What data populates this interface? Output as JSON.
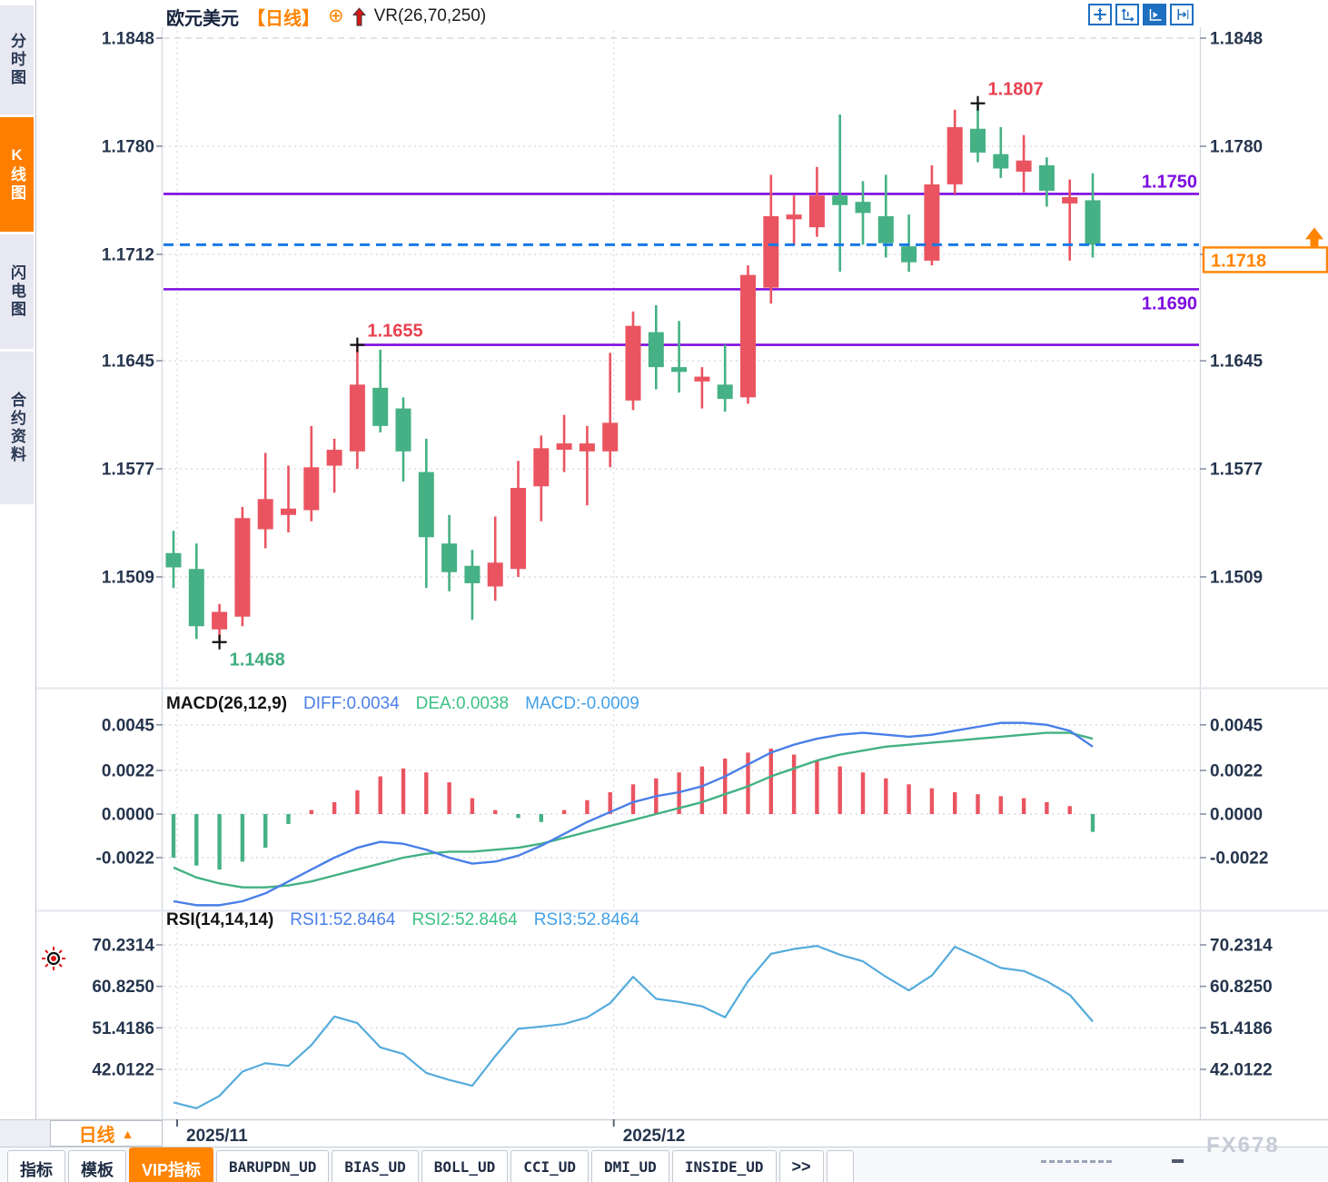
{
  "header": {
    "symbol": "欧元美元",
    "period_tag": "【日线】",
    "plus_icon": "⊕",
    "arrow_icon_name": "red-up-arrow-icon",
    "indicator_label": "VR(26,70,250)"
  },
  "window_buttons": [
    "crosshair-icon",
    "axis-zoom-icon",
    "axis-play-icon",
    "shift-right-icon"
  ],
  "sidebar": {
    "tabs": [
      {
        "label": "分时图",
        "active": false
      },
      {
        "label": "K线图",
        "active": true
      },
      {
        "label": "闪电图",
        "active": false
      },
      {
        "label": "合约资料",
        "active": false
      }
    ]
  },
  "macd_header": {
    "title": "MACD(26,12,9)",
    "diff": "DIFF:0.0034",
    "dea": "DEA:0.0038",
    "macd": "MACD:-0.0009"
  },
  "rsi_header": {
    "title": "RSI(14,14,14)",
    "rsi1": "RSI1:52.8464",
    "rsi2": "RSI2:52.8464",
    "rsi3": "RSI3:52.8464"
  },
  "bottom": {
    "period_label": "日线",
    "period_arrow": "▲",
    "watermark": "FX678"
  },
  "tabs_bottom": [
    "指标",
    "模板",
    "VIP指标",
    "BARUPDN_UD",
    "BIAS_UD",
    "BOLL_UD",
    "CCI_UD",
    "DMI_UD",
    "INSIDE_UD",
    ">>"
  ],
  "colors": {
    "up": "#ea5460",
    "down": "#45b184",
    "accent_orange": "#ff8400",
    "purple": "#7d0ce0",
    "current_blue": "#1778e8",
    "axis_text": "#25354d",
    "diff_blue": "#4a7fe8",
    "dea_green": "#43b184",
    "rsi_line": "#55abdc",
    "grid": "#d9d9e0",
    "marker_green": "#3fae7f",
    "marker_red": "#e84150",
    "watermark_gray": "#c6ccd6"
  },
  "chart_data": [
    {
      "type": "candlestick",
      "title": "欧元美元 日线 (EUR/USD daily)",
      "tick_decimals": 4,
      "yticks": [
        1.1848,
        1.178,
        1.1712,
        1.1645,
        1.1577,
        1.1509
      ],
      "ylim": [
        1.1468,
        1.1848
      ],
      "x_labels": [
        "2025/11",
        "2025/12"
      ],
      "month_start_indices": [
        0,
        19
      ],
      "current_price": 1.1718,
      "current_price_label": "1.1718",
      "hlines": [
        {
          "price": 1.175,
          "label": "1.1750",
          "label_side": "above",
          "start_index": null
        },
        {
          "price": 1.169,
          "label": "1.1690",
          "label_side": "below",
          "start_index": null
        },
        {
          "price": 1.1655,
          "label": null,
          "label_side": null,
          "start_index": 8
        }
      ],
      "markers": [
        {
          "index": 2,
          "price": 1.1468,
          "label": "1.1468",
          "position": "below",
          "color": "#3fae7f"
        },
        {
          "index": 8,
          "price": 1.1655,
          "label": "1.1655",
          "position": "above",
          "color": "#e84150"
        },
        {
          "index": 35,
          "price": 1.1807,
          "label": "1.1807",
          "position": "above",
          "color": "#e84150"
        }
      ],
      "candles_ohlc": [
        [
          1.1524,
          1.1538,
          1.1502,
          1.1515
        ],
        [
          1.1514,
          1.153,
          1.147,
          1.1478
        ],
        [
          1.1476,
          1.1492,
          1.1468,
          1.1487
        ],
        [
          1.1484,
          1.1553,
          1.1478,
          1.1546
        ],
        [
          1.1539,
          1.1587,
          1.1527,
          1.1558
        ],
        [
          1.1548,
          1.1579,
          1.1537,
          1.1552
        ],
        [
          1.1551,
          1.1604,
          1.1544,
          1.1578
        ],
        [
          1.1579,
          1.1596,
          1.1562,
          1.1589
        ],
        [
          1.1588,
          1.1655,
          1.1577,
          1.163
        ],
        [
          1.1628,
          1.1652,
          1.16,
          1.1604
        ],
        [
          1.1615,
          1.1622,
          1.1569,
          1.1588
        ],
        [
          1.1575,
          1.1596,
          1.1502,
          1.1534
        ],
        [
          1.153,
          1.1548,
          1.15,
          1.1512
        ],
        [
          1.1516,
          1.1526,
          1.1482,
          1.1505
        ],
        [
          1.1503,
          1.1547,
          1.1494,
          1.1518
        ],
        [
          1.1514,
          1.1582,
          1.1509,
          1.1565
        ],
        [
          1.1566,
          1.1598,
          1.1544,
          1.159
        ],
        [
          1.1589,
          1.1611,
          1.1575,
          1.1593
        ],
        [
          1.1588,
          1.1604,
          1.1554,
          1.1593
        ],
        [
          1.1588,
          1.165,
          1.1578,
          1.1606
        ],
        [
          1.162,
          1.1676,
          1.1614,
          1.1667
        ],
        [
          1.1663,
          1.168,
          1.1627,
          1.1641
        ],
        [
          1.1641,
          1.167,
          1.1625,
          1.1638
        ],
        [
          1.1632,
          1.1641,
          1.1615,
          1.1635
        ],
        [
          1.163,
          1.1655,
          1.1613,
          1.1621
        ],
        [
          1.1622,
          1.1705,
          1.1618,
          1.1699
        ],
        [
          1.1691,
          1.1762,
          1.1681,
          1.1736
        ],
        [
          1.1734,
          1.1749,
          1.1718,
          1.1737
        ],
        [
          1.1729,
          1.1767,
          1.1723,
          1.1749
        ],
        [
          1.1749,
          1.18,
          1.1701,
          1.1743
        ],
        [
          1.1745,
          1.1758,
          1.1718,
          1.1738
        ],
        [
          1.1736,
          1.1762,
          1.171,
          1.1719
        ],
        [
          1.1717,
          1.1737,
          1.1701,
          1.1707
        ],
        [
          1.1708,
          1.1768,
          1.1705,
          1.1756
        ],
        [
          1.1756,
          1.1803,
          1.175,
          1.1792
        ],
        [
          1.1791,
          1.1807,
          1.177,
          1.1776
        ],
        [
          1.1775,
          1.1792,
          1.176,
          1.1766
        ],
        [
          1.1764,
          1.1787,
          1.1751,
          1.1771
        ],
        [
          1.1768,
          1.1773,
          1.1742,
          1.1752
        ],
        [
          1.1744,
          1.1759,
          1.1708,
          1.1748
        ],
        [
          1.1746,
          1.1763,
          1.171,
          1.1718
        ]
      ]
    },
    {
      "type": "bar+line",
      "name": "MACD",
      "params": "26,12,9",
      "tick_decimals": 4,
      "yticks": [
        0.0045,
        0.0022,
        0.0,
        -0.0022
      ],
      "hist": [
        -0.0022,
        -0.0026,
        -0.0028,
        -0.0024,
        -0.0017,
        -0.0005,
        0.0002,
        0.0006,
        0.0012,
        0.0019,
        0.0023,
        0.0021,
        0.0016,
        0.0008,
        0.0002,
        -0.0002,
        -0.0004,
        0.0002,
        0.0007,
        0.0011,
        0.0015,
        0.0018,
        0.0021,
        0.0024,
        0.0028,
        0.0031,
        0.0033,
        0.003,
        0.0027,
        0.0024,
        0.0021,
        0.0018,
        0.0015,
        0.0013,
        0.0011,
        0.001,
        0.0009,
        0.0008,
        0.0006,
        0.0004,
        -0.0009
      ],
      "diff": [
        -0.0044,
        -0.0046,
        -0.0046,
        -0.0044,
        -0.004,
        -0.0034,
        -0.0028,
        -0.0022,
        -0.0017,
        -0.0014,
        -0.0015,
        -0.0018,
        -0.0022,
        -0.0025,
        -0.0024,
        -0.0021,
        -0.0016,
        -0.001,
        -0.0004,
        0.0001,
        0.0006,
        0.0009,
        0.0011,
        0.0014,
        0.0019,
        0.0025,
        0.0031,
        0.0035,
        0.0038,
        0.004,
        0.0041,
        0.004,
        0.0039,
        0.004,
        0.0042,
        0.0044,
        0.0046,
        0.0046,
        0.0045,
        0.0042,
        0.0034
      ],
      "dea": [
        -0.0027,
        -0.0032,
        -0.0035,
        -0.0037,
        -0.0037,
        -0.0036,
        -0.0034,
        -0.0031,
        -0.0028,
        -0.0025,
        -0.0022,
        -0.002,
        -0.0019,
        -0.0019,
        -0.0018,
        -0.0017,
        -0.0015,
        -0.0012,
        -0.0009,
        -0.0006,
        -0.0003,
        0.0,
        0.0003,
        0.0006,
        0.001,
        0.0014,
        0.0019,
        0.0023,
        0.0027,
        0.003,
        0.0032,
        0.0034,
        0.0035,
        0.0036,
        0.0037,
        0.0038,
        0.0039,
        0.004,
        0.0041,
        0.0041,
        0.0038
      ]
    },
    {
      "type": "line",
      "name": "RSI",
      "params": "14,14,14",
      "tick_decimals": 4,
      "yticks": [
        70.2314,
        60.825,
        51.4186,
        42.0122
      ],
      "values": [
        34.5,
        33.2,
        36.0,
        41.5,
        43.4,
        42.8,
        47.5,
        54.0,
        52.5,
        47.0,
        45.5,
        41.2,
        39.6,
        38.3,
        45.0,
        51.2,
        51.7,
        52.3,
        53.8,
        57.0,
        63.0,
        58.0,
        57.3,
        56.3,
        53.8,
        62.0,
        68.2,
        69.3,
        70.0,
        68.0,
        66.5,
        63.0,
        59.9,
        63.3,
        69.8,
        67.5,
        65.0,
        64.3,
        62.0,
        58.9,
        52.8464
      ]
    }
  ]
}
